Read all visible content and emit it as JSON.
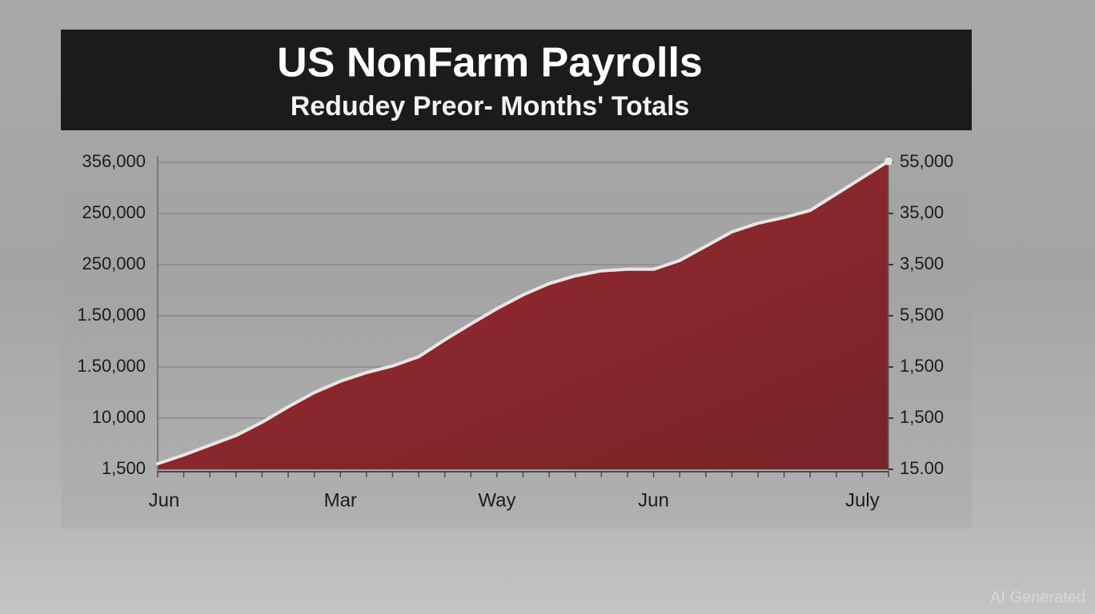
{
  "chart_data": {
    "type": "area",
    "title": "US NonFarm Payrolls",
    "subtitle": "Redudey Preor- Months' Totals",
    "watermark": "AI Generated",
    "categories": [
      "Jun",
      null,
      null,
      null,
      null,
      null,
      null,
      "Mar",
      null,
      null,
      null,
      null,
      null,
      "Way",
      null,
      null,
      null,
      null,
      null,
      "Jun",
      null,
      null,
      null,
      null,
      null,
      null,
      null,
      "July",
      null
    ],
    "series": [
      {
        "name": "Payrolls",
        "color": "#8e2a2e",
        "line_color": "#e6e6e6",
        "values": [
          0.11,
          0.28,
          0.47,
          0.66,
          0.92,
          1.22,
          1.5,
          1.72,
          1.89,
          2.02,
          2.2,
          2.53,
          2.84,
          3.14,
          3.41,
          3.63,
          3.78,
          3.88,
          3.91,
          3.91,
          4.08,
          4.36,
          4.64,
          4.81,
          4.92,
          5.06,
          5.38,
          5.7,
          6.02
        ]
      }
    ],
    "ylim": [
      0,
      6
    ],
    "yticks": [
      {
        "value": 0,
        "label": "1,500"
      },
      {
        "value": 1,
        "label": "10,000"
      },
      {
        "value": 2,
        "label": "1.50,000"
      },
      {
        "value": 3,
        "label": "1.50,000"
      },
      {
        "value": 4,
        "label": "250,000"
      },
      {
        "value": 5,
        "label": "250,000"
      },
      {
        "value": 6,
        "label": "356,000"
      }
    ],
    "y2lim": [
      0,
      6
    ],
    "y2ticks": [
      {
        "value": 0,
        "label": "15.00"
      },
      {
        "value": 1,
        "label": "1,500"
      },
      {
        "value": 2,
        "label": "1,500"
      },
      {
        "value": 3,
        "label": "5,500"
      },
      {
        "value": 4,
        "label": "3,500"
      },
      {
        "value": 5,
        "label": "35,00"
      },
      {
        "value": 6,
        "label": "55,000"
      }
    ],
    "grid": true
  }
}
